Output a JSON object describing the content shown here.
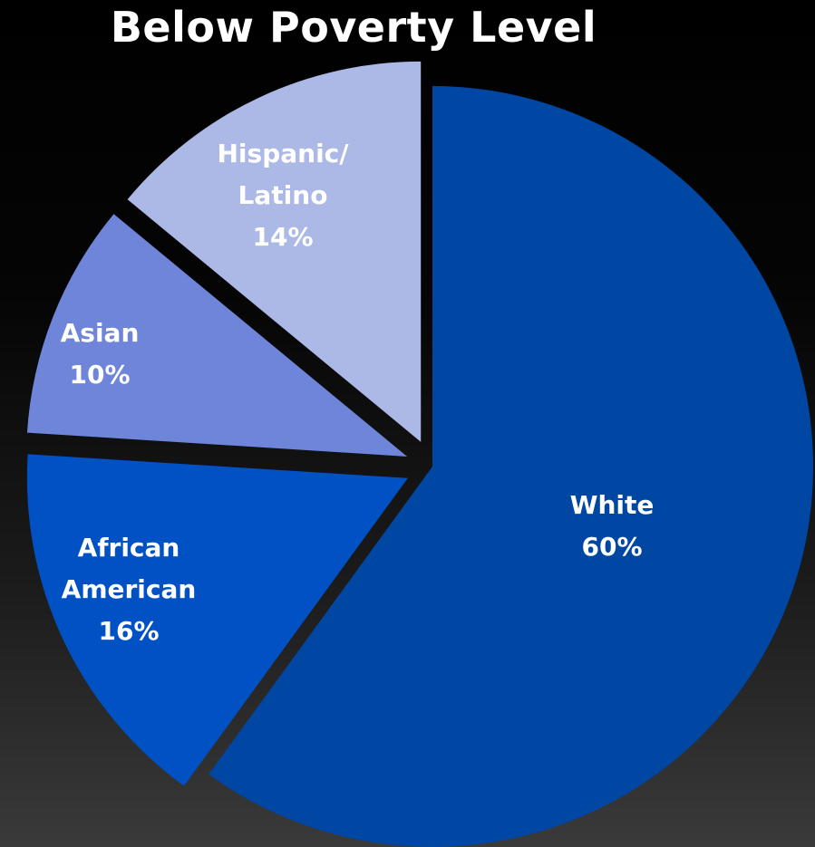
{
  "chart_data": {
    "type": "pie",
    "title": "Below Poverty Level",
    "slices": [
      {
        "name": "White",
        "label_lines": [
          "White"
        ],
        "value": 60,
        "value_label": "60%",
        "color": "#0047A3",
        "exploded": false
      },
      {
        "name": "African American",
        "label_lines": [
          "African",
          "American"
        ],
        "value": 16,
        "value_label": "16%",
        "color": "#0052C4",
        "exploded": true
      },
      {
        "name": "Asian",
        "label_lines": [
          "Asian"
        ],
        "value": 10,
        "value_label": "10%",
        "color": "#6E85DA",
        "exploded": true
      },
      {
        "name": "Hispanic/ Latino",
        "label_lines": [
          "Hispanic/",
          "Latino"
        ],
        "value": 14,
        "value_label": "14%",
        "color": "#ACB8E6",
        "exploded": true
      }
    ],
    "start": "12 o'clock",
    "direction": "clockwise",
    "legend": "none"
  }
}
